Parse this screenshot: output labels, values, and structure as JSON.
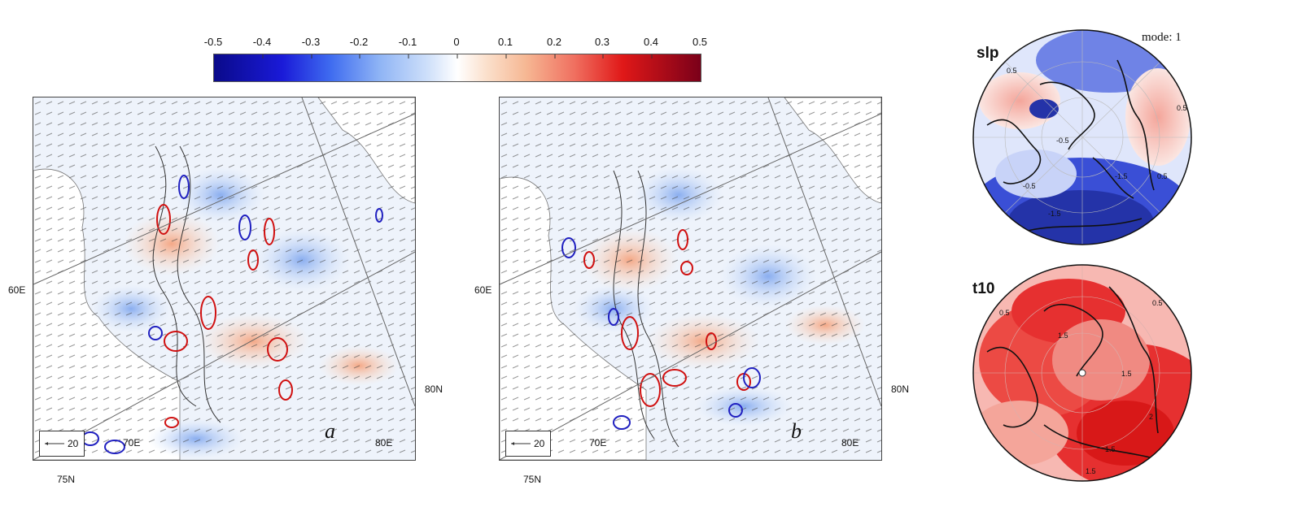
{
  "colorbar": {
    "ticks": [
      "-0.5",
      "-0.4",
      "-0.3",
      "-0.2",
      "-0.1",
      "0",
      "0.1",
      "0.2",
      "0.3",
      "0.4",
      "0.5"
    ],
    "scale": "diverging blue-white-red",
    "low_color": "#0a0a8a",
    "high_color": "#7a0019"
  },
  "panels": [
    {
      "letter": "a",
      "lon_labels": [
        "60E",
        "70E",
        "80E"
      ],
      "lat_labels": [
        "75N",
        "80N"
      ],
      "vector_reference": "20"
    },
    {
      "letter": "b",
      "lon_labels": [
        "60E",
        "70E",
        "80E"
      ],
      "lat_labels": [
        "75N",
        "80N"
      ],
      "vector_reference": "20"
    }
  ],
  "globes": [
    {
      "title": "slp",
      "mode_label": "mode: 1",
      "dominant_color": "#3a4fd6",
      "contour_labels": [
        "-0.5",
        "-1.5",
        "-1.5",
        "-0.5",
        "0.5",
        "0.5",
        "0.5"
      ]
    },
    {
      "title": "t10",
      "mode_label": "",
      "dominant_color": "#e01818",
      "contour_labels": [
        "0.5",
        "1.5",
        "1.5",
        "1.5",
        "0.5",
        "1.5",
        "2"
      ]
    }
  ]
}
